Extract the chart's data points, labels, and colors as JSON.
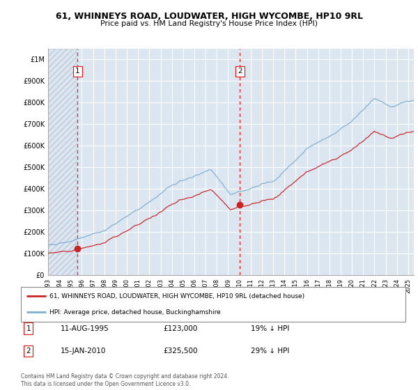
{
  "title": "61, WHINNEYS ROAD, LOUDWATER, HIGH WYCOMBE, HP10 9RL",
  "subtitle": "Price paid vs. HM Land Registry's House Price Index (HPI)",
  "sale1_date": "11-AUG-1995",
  "sale1_price": 123000,
  "sale1_label": "19% ↓ HPI",
  "sale2_date": "15-JAN-2010",
  "sale2_price": 325500,
  "sale2_label": "29% ↓ HPI",
  "red_line_color": "#cc2222",
  "blue_line_color": "#7bafd4",
  "background_color": "#dce6f1",
  "hatch_color": "#c0c8d8",
  "grid_color": "#ffffff",
  "vline_color": "#dd2222",
  "marker_color": "#cc2222",
  "legend_label_red": "61, WHINNEYS ROAD, LOUDWATER, HIGH WYCOMBE, HP10 9RL (detached house)",
  "legend_label_blue": "HPI: Average price, detached house, Buckinghamshire",
  "footer": "Contains HM Land Registry data © Crown copyright and database right 2024.\nThis data is licensed under the Open Government Licence v3.0.",
  "year_start": 1993,
  "year_end": 2025,
  "ylim_max": 1050000,
  "sale1_x": 1995.622,
  "sale2_x": 2010.042
}
